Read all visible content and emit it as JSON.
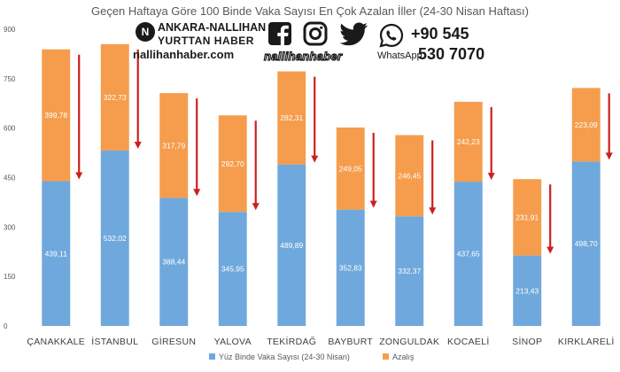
{
  "chart_data": {
    "type": "bar",
    "stacked": true,
    "title": "Geçen Haftaya Göre 100 Binde Vaka Sayısı En Çok Azalan İller (24-30 Nisan Haftası)",
    "categories": [
      "ÇANAKKALE",
      "İSTANBUL",
      "GİRESUN",
      "YALOVA",
      "TEKİRDAĞ",
      "BAYBURT",
      "ZONGULDAK",
      "KOCAELİ",
      "SİNOP",
      "KIRKLARELİ"
    ],
    "series": [
      {
        "name": "Yüz Binde Vaka Sayısı (24-30 Nisan)",
        "color": "#6fa8dc",
        "values": [
          439.11,
          532.02,
          388.44,
          345.95,
          489.89,
          352.83,
          332.37,
          437.65,
          213.43,
          498.7
        ],
        "labels": [
          "439,11",
          "532,02",
          "388,44",
          "345,95",
          "489,89",
          "352,83",
          "332,37",
          "437,65",
          "213,43",
          "498,70"
        ]
      },
      {
        "name": "Azalış",
        "color": "#f59d4d",
        "values": [
          399.78,
          322.73,
          317.79,
          292.7,
          282.31,
          249.05,
          246.45,
          242.23,
          231.91,
          223.09
        ],
        "labels": [
          "399,78",
          "322,73",
          "317,79",
          "292,70",
          "282,31",
          "249,05",
          "246,45",
          "242,23",
          "231,91",
          "223,09"
        ]
      }
    ],
    "yticks": [
      "0",
      "150",
      "300",
      "450",
      "600",
      "750",
      "900"
    ],
    "ylim": [
      0,
      900
    ],
    "legend_position": "bottom",
    "arrow_color": "#cc1f1f",
    "grid": false
  },
  "branding": {
    "logo_mark": "N",
    "name_line1": "ANKARA-NALLIHAN",
    "name_line2": "YURTTAN HABER",
    "website": "nallihanhaber.com",
    "social_handle": "nallihanhaber",
    "whatsapp_label": "WhatsApp",
    "phone_line1": "+90 545",
    "phone_line2": "530 7070",
    "icons": [
      "facebook-icon",
      "instagram-icon",
      "twitter-icon",
      "whatsapp-icon"
    ]
  }
}
